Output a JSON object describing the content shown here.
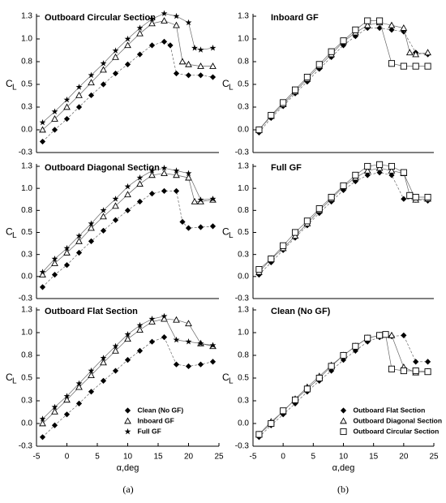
{
  "chart_data": [
    {
      "type": "line",
      "title": "Outboard Circular Section",
      "ylabel": "C",
      "ylabel_sub": "L",
      "xlim": [
        -5,
        25
      ],
      "ylim": [
        -0.25,
        1.25
      ],
      "yticks": [
        {
          "value": -0.25,
          "label": "-0.3"
        },
        {
          "value": 0,
          "label": "0.0"
        },
        {
          "value": 0.25,
          "label": "0.3"
        },
        {
          "value": 0.5,
          "label": "0.5"
        },
        {
          "value": 0.75,
          "label": "0.8"
        },
        {
          "value": 1,
          "label": "1.0"
        },
        {
          "value": 1.25,
          "label": "1.3"
        }
      ],
      "series": [
        {
          "marker": "diamond",
          "color": "#000000",
          "x": [
            -4,
            -2,
            0,
            2,
            4,
            6,
            8,
            10,
            12,
            14,
            16,
            17,
            18,
            20,
            22,
            24
          ],
          "values": [
            -0.13,
            0.0,
            0.12,
            0.25,
            0.38,
            0.5,
            0.62,
            0.72,
            0.83,
            0.93,
            0.97,
            0.93,
            0.62,
            0.6,
            0.6,
            0.58
          ]
        },
        {
          "marker": "triangle",
          "color": "#000000",
          "x": [
            -4,
            -2,
            0,
            2,
            4,
            6,
            8,
            10,
            12,
            14,
            16,
            18,
            19,
            20,
            22,
            24
          ],
          "values": [
            0.0,
            0.12,
            0.25,
            0.38,
            0.52,
            0.66,
            0.8,
            0.93,
            1.06,
            1.17,
            1.2,
            1.15,
            0.75,
            0.72,
            0.7,
            0.7
          ]
        },
        {
          "marker": "star",
          "color": "#000000",
          "x": [
            -4,
            -2,
            0,
            2,
            4,
            6,
            8,
            10,
            12,
            14,
            16,
            18,
            20,
            21,
            22,
            24
          ],
          "values": [
            0.08,
            0.2,
            0.33,
            0.47,
            0.6,
            0.73,
            0.87,
            1.0,
            1.12,
            1.22,
            1.28,
            1.25,
            1.18,
            0.9,
            0.88,
            0.9
          ]
        }
      ]
    },
    {
      "type": "line",
      "title": "Outboard Diagonal Section",
      "ylabel": "C",
      "ylabel_sub": "L",
      "xlim": [
        -5,
        25
      ],
      "ylim": [
        -0.25,
        1.25
      ],
      "yticks": [
        {
          "value": -0.25,
          "label": "-0.3"
        },
        {
          "value": 0,
          "label": "0.0"
        },
        {
          "value": 0.25,
          "label": "0.3"
        },
        {
          "value": 0.5,
          "label": "0.5"
        },
        {
          "value": 0.75,
          "label": "0.8"
        },
        {
          "value": 1,
          "label": "1.0"
        },
        {
          "value": 1.25,
          "label": "1.3"
        }
      ],
      "series": [
        {
          "marker": "diamond",
          "color": "#000000",
          "x": [
            -4,
            -2,
            0,
            2,
            4,
            6,
            8,
            10,
            12,
            14,
            16,
            18,
            19,
            20,
            22,
            24
          ],
          "values": [
            -0.12,
            0.02,
            0.13,
            0.27,
            0.4,
            0.52,
            0.64,
            0.75,
            0.85,
            0.94,
            0.97,
            0.97,
            0.62,
            0.55,
            0.56,
            0.57
          ]
        },
        {
          "marker": "triangle",
          "color": "#000000",
          "x": [
            -4,
            -2,
            0,
            2,
            4,
            6,
            8,
            10,
            12,
            14,
            16,
            18,
            20,
            21,
            22,
            24
          ],
          "values": [
            0.02,
            0.15,
            0.27,
            0.4,
            0.55,
            0.68,
            0.8,
            0.93,
            1.05,
            1.15,
            1.17,
            1.15,
            1.12,
            0.85,
            0.85,
            0.87
          ]
        },
        {
          "marker": "star",
          "color": "#000000",
          "x": [
            -4,
            -2,
            0,
            2,
            4,
            6,
            8,
            10,
            12,
            14,
            16,
            18,
            20,
            22,
            24
          ],
          "values": [
            0.05,
            0.2,
            0.32,
            0.46,
            0.6,
            0.75,
            0.88,
            1.02,
            1.12,
            1.2,
            1.23,
            1.2,
            1.17,
            0.87,
            0.88
          ]
        }
      ]
    },
    {
      "type": "line",
      "title": "Outboard Flat Section",
      "ylabel": "C",
      "ylabel_sub": "L",
      "xlabel": "α,deg",
      "xlim": [
        -5,
        25
      ],
      "ylim": [
        -0.25,
        1.25
      ],
      "xticks": [
        -5,
        0,
        5,
        10,
        15,
        20,
        25
      ],
      "yticks": [
        {
          "value": -0.25,
          "label": "-0.3"
        },
        {
          "value": 0,
          "label": "0.0"
        },
        {
          "value": 0.25,
          "label": "0.3"
        },
        {
          "value": 0.5,
          "label": "0.5"
        },
        {
          "value": 0.75,
          "label": "0.8"
        },
        {
          "value": 1,
          "label": "1.0"
        },
        {
          "value": 1.25,
          "label": "1.3"
        }
      ],
      "legend": "lower right",
      "series": [
        {
          "name": "Clean (No GF)",
          "marker": "diamond",
          "color": "#000000",
          "x": [
            -4,
            -2,
            0,
            2,
            4,
            6,
            8,
            10,
            12,
            14,
            16,
            18,
            20,
            22,
            24
          ],
          "values": [
            -0.15,
            -0.02,
            0.1,
            0.22,
            0.35,
            0.47,
            0.58,
            0.7,
            0.8,
            0.9,
            0.95,
            0.65,
            0.63,
            0.65,
            0.68
          ]
        },
        {
          "name": "Inboard GF",
          "marker": "triangle",
          "color": "#000000",
          "x": [
            -4,
            -2,
            0,
            2,
            4,
            6,
            8,
            10,
            12,
            14,
            16,
            18,
            20,
            22,
            24
          ],
          "values": [
            0.0,
            0.13,
            0.26,
            0.4,
            0.53,
            0.67,
            0.8,
            0.93,
            1.03,
            1.12,
            1.15,
            1.14,
            1.1,
            0.88,
            0.85
          ]
        },
        {
          "name": "Full GF",
          "marker": "star",
          "color": "#000000",
          "x": [
            -4,
            -2,
            0,
            2,
            4,
            6,
            8,
            10,
            12,
            14,
            16,
            18,
            20,
            22,
            24
          ],
          "values": [
            0.05,
            0.18,
            0.3,
            0.44,
            0.58,
            0.72,
            0.85,
            0.98,
            1.08,
            1.15,
            1.18,
            0.92,
            0.9,
            0.88,
            0.86
          ]
        }
      ]
    },
    {
      "type": "line",
      "title": "Inboard GF",
      "ylabel": "C",
      "ylabel_sub": "L",
      "xlim": [
        -5,
        25
      ],
      "ylim": [
        -0.25,
        1.25
      ],
      "yticks": [
        {
          "value": -0.25,
          "label": "-0.3"
        },
        {
          "value": 0,
          "label": "0.0"
        },
        {
          "value": 0.25,
          "label": "0.3"
        },
        {
          "value": 0.5,
          "label": "0.5"
        },
        {
          "value": 0.75,
          "label": "0.8"
        },
        {
          "value": 1,
          "label": "1.0"
        },
        {
          "value": 1.25,
          "label": "1.3"
        }
      ],
      "series": [
        {
          "marker": "diamond",
          "color": "#000000",
          "x": [
            -4,
            -2,
            0,
            2,
            4,
            6,
            8,
            10,
            12,
            14,
            16,
            18,
            20,
            22,
            24
          ],
          "values": [
            -0.03,
            0.13,
            0.26,
            0.4,
            0.53,
            0.67,
            0.8,
            0.93,
            1.03,
            1.12,
            1.12,
            1.1,
            1.08,
            0.85,
            0.83
          ]
        },
        {
          "marker": "triangle",
          "color": "#000000",
          "x": [
            -4,
            -2,
            0,
            2,
            4,
            6,
            8,
            10,
            12,
            14,
            16,
            18,
            20,
            21,
            22,
            24
          ],
          "values": [
            0.0,
            0.15,
            0.28,
            0.42,
            0.56,
            0.7,
            0.83,
            0.97,
            1.07,
            1.15,
            1.18,
            1.15,
            1.12,
            0.85,
            0.83,
            0.85
          ]
        },
        {
          "marker": "square",
          "color": "#000000",
          "x": [
            -4,
            -2,
            0,
            2,
            4,
            6,
            8,
            10,
            12,
            14,
            16,
            18,
            20,
            22,
            24
          ],
          "values": [
            0.0,
            0.16,
            0.3,
            0.44,
            0.58,
            0.72,
            0.86,
            0.98,
            1.1,
            1.2,
            1.2,
            0.73,
            0.7,
            0.7,
            0.7
          ]
        }
      ]
    },
    {
      "type": "line",
      "title": "Full GF",
      "ylabel": "C",
      "ylabel_sub": "L",
      "xlim": [
        -5,
        25
      ],
      "ylim": [
        -0.25,
        1.25
      ],
      "yticks": [
        {
          "value": -0.25,
          "label": "-0.3"
        },
        {
          "value": 0,
          "label": "0.0"
        },
        {
          "value": 0.25,
          "label": "0.3"
        },
        {
          "value": 0.5,
          "label": "0.5"
        },
        {
          "value": 0.75,
          "label": "0.8"
        },
        {
          "value": 1,
          "label": "1.0"
        },
        {
          "value": 1.25,
          "label": "1.3"
        }
      ],
      "series": [
        {
          "marker": "diamond",
          "color": "#000000",
          "x": [
            -4,
            -2,
            0,
            2,
            4,
            6,
            8,
            10,
            12,
            14,
            16,
            18,
            20,
            22,
            24
          ],
          "values": [
            0.02,
            0.16,
            0.3,
            0.44,
            0.58,
            0.72,
            0.85,
            0.98,
            1.08,
            1.15,
            1.18,
            1.15,
            0.88,
            0.87,
            0.86
          ]
        },
        {
          "marker": "triangle",
          "color": "#000000",
          "x": [
            -4,
            -2,
            0,
            2,
            4,
            6,
            8,
            10,
            12,
            14,
            16,
            18,
            20,
            22,
            24
          ],
          "values": [
            0.05,
            0.2,
            0.32,
            0.46,
            0.6,
            0.75,
            0.88,
            1.02,
            1.12,
            1.2,
            1.23,
            1.2,
            1.17,
            0.87,
            0.88
          ]
        },
        {
          "marker": "square",
          "color": "#000000",
          "x": [
            -4,
            -2,
            0,
            2,
            4,
            6,
            8,
            10,
            12,
            14,
            16,
            18,
            20,
            21,
            22,
            24
          ],
          "values": [
            0.08,
            0.2,
            0.35,
            0.5,
            0.63,
            0.77,
            0.9,
            1.03,
            1.15,
            1.25,
            1.27,
            1.25,
            1.18,
            0.92,
            0.9,
            0.9
          ]
        }
      ]
    },
    {
      "type": "line",
      "title": "Clean (No GF)",
      "ylabel": "C",
      "ylabel_sub": "L",
      "xlabel": "α,deg",
      "xlim": [
        -5,
        25
      ],
      "ylim": [
        -0.25,
        1.25
      ],
      "xticks": [
        -5,
        0,
        5,
        10,
        15,
        20,
        25
      ],
      "yticks": [
        {
          "value": -0.25,
          "label": "-0.3"
        },
        {
          "value": 0,
          "label": "0.0"
        },
        {
          "value": 0.25,
          "label": "0.3"
        },
        {
          "value": 0.5,
          "label": "0.5"
        },
        {
          "value": 0.75,
          "label": "0.8"
        },
        {
          "value": 1,
          "label": "1.0"
        },
        {
          "value": 1.25,
          "label": "1.3"
        }
      ],
      "legend": "lower right",
      "series": [
        {
          "name": "Outboard Flat Section",
          "marker": "diamond",
          "color": "#000000",
          "x": [
            -4,
            -2,
            0,
            2,
            4,
            6,
            8,
            10,
            12,
            14,
            16,
            18,
            20,
            22,
            24
          ],
          "values": [
            -0.15,
            -0.02,
            0.1,
            0.22,
            0.35,
            0.47,
            0.58,
            0.7,
            0.8,
            0.9,
            0.95,
            0.96,
            0.97,
            0.68,
            0.68
          ]
        },
        {
          "name": "Outboard Diagonal Section",
          "marker": "triangle",
          "color": "#000000",
          "x": [
            -4,
            -2,
            0,
            2,
            4,
            6,
            8,
            10,
            12,
            14,
            16,
            18,
            20,
            22,
            24
          ],
          "values": [
            -0.12,
            0.02,
            0.13,
            0.27,
            0.4,
            0.52,
            0.64,
            0.75,
            0.85,
            0.94,
            0.97,
            0.97,
            0.62,
            0.56,
            0.57
          ]
        },
        {
          "name": "Outboard Circular Section",
          "marker": "square",
          "color": "#000000",
          "x": [
            -4,
            -2,
            0,
            2,
            4,
            6,
            8,
            10,
            12,
            14,
            16,
            17,
            18,
            20,
            22,
            24
          ],
          "values": [
            -0.12,
            0.0,
            0.14,
            0.26,
            0.38,
            0.5,
            0.63,
            0.75,
            0.85,
            0.94,
            0.97,
            0.98,
            0.6,
            0.58,
            0.58,
            0.57
          ]
        }
      ]
    }
  ],
  "figure_labels": [
    "(a)",
    "(b)"
  ]
}
